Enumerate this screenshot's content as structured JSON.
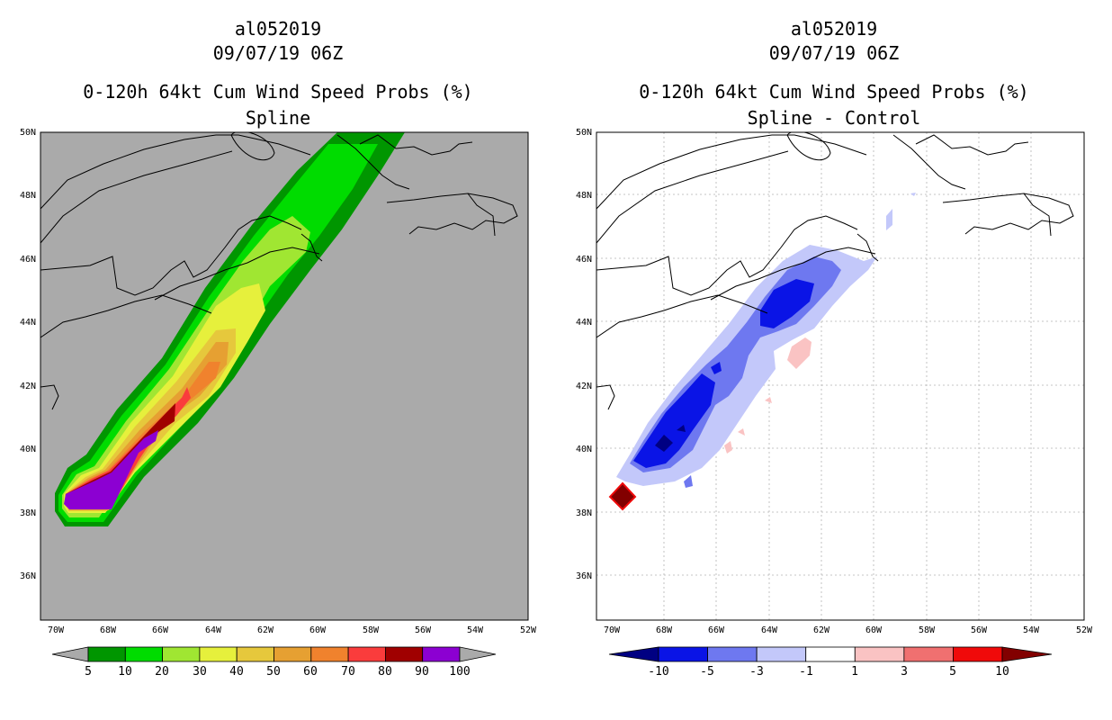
{
  "chart_data": [
    {
      "type": "heatmap",
      "title_lines": [
        "al052019",
        "09/07/19 06Z",
        "0-120h 64kt Cum Wind Speed Probs (%)",
        "Spline"
      ],
      "x_ticks": [
        "70W",
        "68W",
        "66W",
        "64W",
        "62W",
        "60W",
        "58W",
        "56W",
        "54W",
        "52W"
      ],
      "y_ticks": [
        "36N",
        "38N",
        "40N",
        "42N",
        "44N",
        "46N",
        "48N",
        "50N"
      ],
      "xlim": [
        -70.5,
        -52
      ],
      "ylim": [
        34.6,
        50
      ],
      "gridlines": false,
      "background_color": "#aaaaaa",
      "colorbar": {
        "labels": [
          "5",
          "10",
          "20",
          "30",
          "40",
          "50",
          "60",
          "70",
          "80",
          "90",
          "100"
        ],
        "colors": [
          "#009600",
          "#00dc00",
          "#a0e632",
          "#e6f03c",
          "#e6c83c",
          "#e6a032",
          "#f0822d",
          "#fa3c3c",
          "#a00000",
          "#8c00d2"
        ],
        "extend_colors": [
          "#aaaaaa",
          "#aaaaaa"
        ]
      },
      "contour_levels": [
        {
          "level": 5,
          "color": "#009600"
        },
        {
          "level": 10,
          "color": "#00dc00"
        },
        {
          "level": 20,
          "color": "#a0e632"
        },
        {
          "level": 30,
          "color": "#e6f03c"
        },
        {
          "level": 40,
          "color": "#e6c83c"
        },
        {
          "level": 50,
          "color": "#e6a032"
        },
        {
          "level": 60,
          "color": "#f0822d"
        },
        {
          "level": 70,
          "color": "#fa3c3c"
        },
        {
          "level": 80,
          "color": "#a00000"
        },
        {
          "level": 90,
          "color": "#8c00d2"
        }
      ]
    },
    {
      "type": "heatmap",
      "title_lines": [
        "al052019",
        "09/07/19 06Z",
        "0-120h 64kt Cum Wind Speed Probs (%)",
        "Spline - Control"
      ],
      "x_ticks": [
        "70W",
        "68W",
        "66W",
        "64W",
        "62W",
        "60W",
        "58W",
        "56W",
        "54W",
        "52W"
      ],
      "y_ticks": [
        "36N",
        "38N",
        "40N",
        "42N",
        "44N",
        "46N",
        "48N",
        "50N"
      ],
      "xlim": [
        -70.5,
        -52
      ],
      "ylim": [
        34.6,
        50
      ],
      "gridlines": true,
      "background_color": "#ffffff",
      "colorbar": {
        "labels": [
          "-10",
          "-5",
          "-3",
          "-1",
          "1",
          "3",
          "5",
          "10"
        ],
        "colors": [
          "#0a14e6",
          "#6e78f0",
          "#c3c8fa",
          "#ffffff",
          "#fac3c3",
          "#f07070",
          "#f00a0a"
        ],
        "extend_colors": [
          "#000082",
          "#820000"
        ]
      },
      "contour_levels": [
        {
          "level": -1,
          "color": "#c3c8fa"
        },
        {
          "level": -3,
          "color": "#6e78f0"
        },
        {
          "level": -5,
          "color": "#0a14e6"
        },
        {
          "level": -10,
          "color": "#000082"
        },
        {
          "level": 1,
          "color": "#fac3c3"
        },
        {
          "level": 10,
          "color": "#820000"
        }
      ]
    }
  ]
}
